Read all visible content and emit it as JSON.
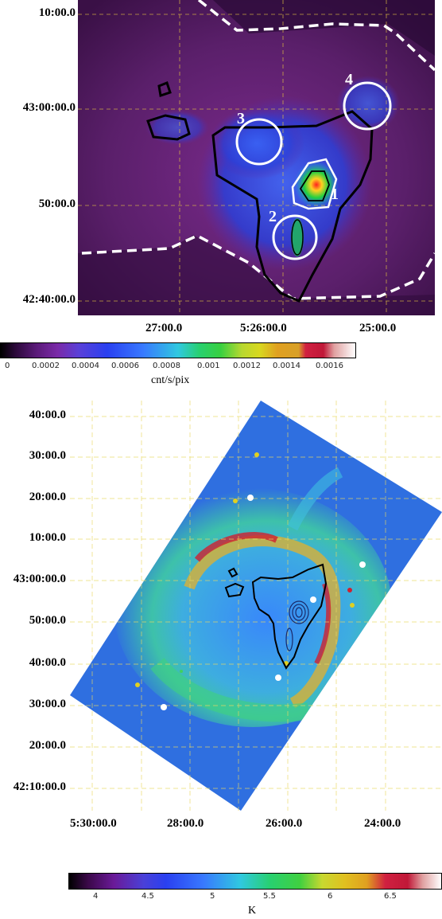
{
  "top_panel": {
    "y_ticks": [
      "10:00.0",
      "43:00:00.0",
      "50:00.0",
      "42:40:00.0"
    ],
    "x_ticks": [
      "27:00.0",
      "5:26:00.0",
      "25:00.0"
    ],
    "region_labels": [
      "1",
      "2",
      "3",
      "4"
    ],
    "colorbar": {
      "ticks": [
        "0",
        "0.0002",
        "0.0004",
        "0.0006",
        "0.0008",
        "0.001",
        "0.0012",
        "0.0014",
        "0.0016"
      ],
      "unit": "cnt/s/pix"
    }
  },
  "bottom_panel": {
    "y_ticks": [
      "40:00.0",
      "30:00.0",
      "20:00.0",
      "10:00.0",
      "43:00:00.0",
      "50:00.0",
      "40:00.0",
      "30:00.0",
      "20:00.0",
      "42:10:00.0"
    ],
    "x_ticks": [
      "5:30:00.0",
      "28:00.0",
      "26:00.0",
      "24:00.0"
    ],
    "colorbar": {
      "ticks": [
        "4",
        "4.5",
        "5",
        "5.5",
        "6",
        "6.5"
      ],
      "unit": "K"
    }
  },
  "colors": {
    "background_dark": "#4a1a58",
    "emission_blue": "#2a4ee8",
    "radio_blue": "#2f6fe0",
    "contour": "#000000",
    "region_circle": "#ffffff",
    "grid": "#e8c840"
  }
}
